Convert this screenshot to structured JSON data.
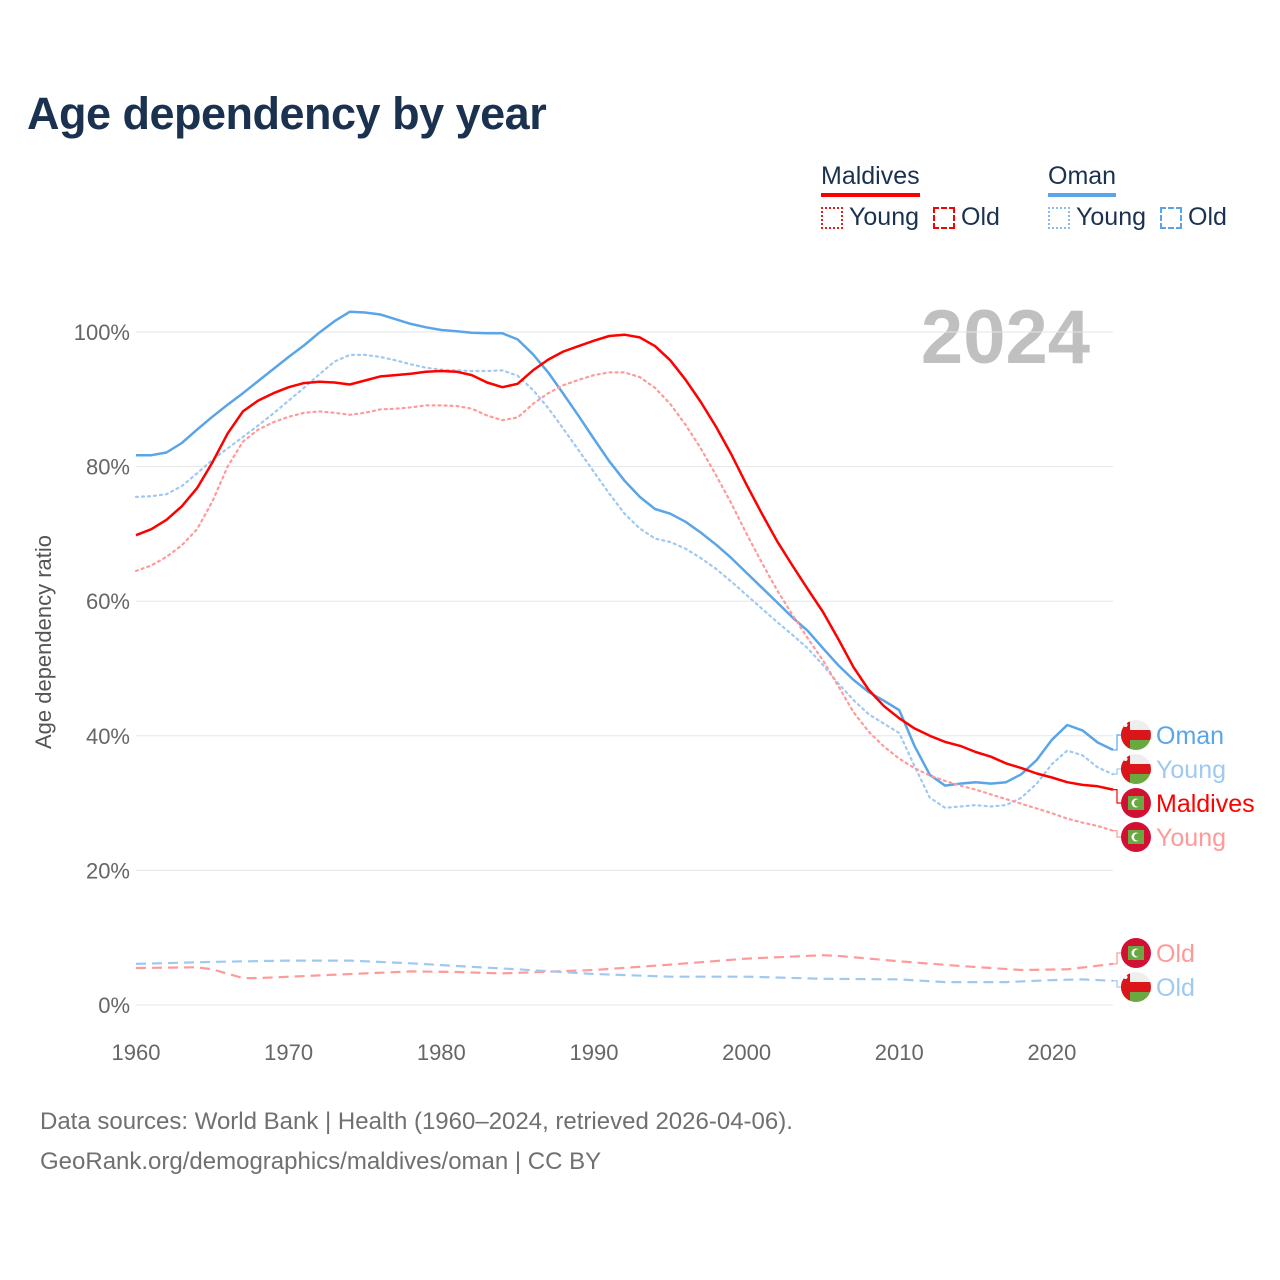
{
  "title": "Age dependency by year",
  "legend": {
    "groups": [
      {
        "name": "Maldives",
        "color": "#ff0000",
        "light": "#ff9a9a",
        "items": [
          "Young",
          "Old"
        ]
      },
      {
        "name": "Oman",
        "color": "#5aa5e8",
        "light": "#9fc9f1",
        "items": [
          "Young",
          "Old"
        ]
      }
    ]
  },
  "year_watermark": "2024",
  "footer": {
    "line1": "Data sources: World Bank | Health (1960–2024, retrieved 2026-04-06).",
    "line2": "GeoRank.org/demographics/maldives/oman | CC BY"
  },
  "chart_data": {
    "type": "line",
    "title": "Age dependency by year",
    "xlabel": "",
    "ylabel": "Age dependency ratio",
    "xlim": [
      1960,
      2024
    ],
    "ylim": [
      0,
      100
    ],
    "xticks": [
      "1960",
      "1970",
      "1980",
      "1990",
      "2000",
      "2010",
      "2020"
    ],
    "yticks": [
      "0%",
      "20%",
      "40%",
      "60%",
      "80%",
      "100%"
    ],
    "grid": true,
    "series": [
      {
        "name": "Oman",
        "country": "Oman",
        "kind": "Total",
        "label": "Oman",
        "style": "solid",
        "color": "#5aa5e8",
        "x_start": 1960,
        "values": [
          81.7,
          81.7,
          82.1,
          83.5,
          85.5,
          87.4,
          89.2,
          90.9,
          92.7,
          94.5,
          96.3,
          98.0,
          99.9,
          101.6,
          103.0,
          102.9,
          102.6,
          101.9,
          101.2,
          100.7,
          100.3,
          100.1,
          99.9,
          99.8,
          99.8,
          98.9,
          96.7,
          94.0,
          90.8,
          87.5,
          84.1,
          80.8,
          77.9,
          75.5,
          73.7,
          73.0,
          71.8,
          70.2,
          68.4,
          66.4,
          64.2,
          62.0,
          59.8,
          57.6,
          55.6,
          53.0,
          50.5,
          48.3,
          46.5,
          45.2,
          43.8,
          38.5,
          34.2,
          32.6,
          32.9,
          33.1,
          32.9,
          33.1,
          34.3,
          36.4,
          39.4,
          41.6,
          40.8,
          39.0,
          37.9
        ]
      },
      {
        "name": "Oman Young",
        "country": "Oman",
        "kind": "Young",
        "label": "Young",
        "style": "dotted",
        "color": "#9fc9f1",
        "x_start": 1960,
        "values": [
          75.5,
          75.6,
          75.9,
          77.1,
          79.0,
          81.0,
          82.7,
          84.4,
          86.1,
          87.9,
          89.8,
          91.7,
          93.7,
          95.6,
          96.6,
          96.6,
          96.3,
          95.8,
          95.2,
          94.7,
          94.4,
          94.3,
          94.2,
          94.2,
          94.3,
          93.5,
          91.4,
          88.7,
          85.6,
          82.4,
          79.2,
          76.0,
          73.0,
          70.8,
          69.3,
          68.8,
          67.8,
          66.4,
          64.8,
          62.9,
          60.9,
          58.9,
          56.9,
          55.0,
          53.0,
          50.5,
          47.8,
          45.3,
          43.2,
          41.8,
          40.4,
          35.5,
          30.8,
          29.3,
          29.5,
          29.7,
          29.5,
          29.7,
          30.8,
          32.9,
          35.8,
          37.8,
          37.1,
          35.3,
          34.3
        ]
      },
      {
        "name": "Maldives",
        "country": "Maldives",
        "kind": "Total",
        "label": "Maldives",
        "style": "solid",
        "color": "#ff0000",
        "x_start": 1960,
        "values": [
          69.8,
          70.7,
          72.1,
          74.1,
          76.8,
          80.6,
          84.9,
          88.2,
          89.8,
          90.9,
          91.8,
          92.4,
          92.6,
          92.5,
          92.2,
          92.8,
          93.4,
          93.6,
          93.8,
          94.1,
          94.2,
          94.1,
          93.6,
          92.5,
          91.8,
          92.3,
          94.3,
          95.9,
          97.1,
          97.9,
          98.7,
          99.4,
          99.6,
          99.2,
          97.9,
          95.8,
          92.9,
          89.6,
          85.9,
          81.8,
          77.3,
          73.0,
          68.9,
          65.3,
          61.8,
          58.4,
          54.4,
          50.2,
          46.8,
          44.4,
          42.6,
          41.1,
          40.0,
          39.1,
          38.5,
          37.6,
          36.9,
          35.9,
          35.2,
          34.4,
          33.8,
          33.1,
          32.7,
          32.5,
          32.0
        ]
      },
      {
        "name": "Maldives Young",
        "country": "Maldives",
        "kind": "Young",
        "label": "Young",
        "style": "dotted",
        "color": "#ff9a9a",
        "x_start": 1960,
        "values": [
          64.5,
          65.3,
          66.6,
          68.3,
          70.7,
          74.8,
          80.0,
          83.7,
          85.5,
          86.6,
          87.4,
          88.0,
          88.2,
          88.0,
          87.7,
          88.0,
          88.5,
          88.6,
          88.8,
          89.1,
          89.1,
          89.0,
          88.6,
          87.6,
          86.9,
          87.3,
          89.3,
          90.9,
          92.1,
          92.9,
          93.6,
          94.0,
          94.0,
          93.3,
          91.7,
          89.3,
          86.2,
          82.7,
          78.7,
          74.5,
          70.0,
          65.7,
          61.6,
          58.0,
          54.5,
          51.2,
          47.4,
          43.5,
          40.6,
          38.4,
          36.6,
          35.2,
          34.1,
          33.3,
          32.6,
          32.0,
          31.3,
          30.6,
          29.9,
          29.2,
          28.5,
          27.7,
          27.1,
          26.6,
          25.9
        ]
      },
      {
        "name": "Maldives Old",
        "country": "Maldives",
        "kind": "Old",
        "label": "Old",
        "style": "dashed",
        "color": "#ff9a9a",
        "x": [
          1960,
          1964,
          1965,
          1967,
          1968,
          1972,
          1978,
          1981,
          1984,
          1990,
          1995,
          2000,
          2005,
          2006,
          2010,
          2014,
          2018,
          2021,
          2024
        ],
        "values": [
          5.5,
          5.6,
          5.3,
          4.0,
          4.0,
          4.4,
          5.0,
          4.9,
          4.7,
          5.2,
          6.0,
          6.9,
          7.4,
          7.3,
          6.5,
          5.8,
          5.2,
          5.3,
          6.1
        ]
      },
      {
        "name": "Oman Old",
        "country": "Oman",
        "kind": "Old",
        "label": "Old",
        "style": "dashed",
        "color": "#9fc9f1",
        "x": [
          1960,
          1965,
          1970,
          1974,
          1978,
          1981,
          1985,
          1990,
          1995,
          2000,
          2005,
          2010,
          2013,
          2017,
          2020,
          2022,
          2024
        ],
        "values": [
          6.1,
          6.4,
          6.6,
          6.6,
          6.2,
          5.8,
          5.3,
          4.6,
          4.2,
          4.2,
          3.9,
          3.8,
          3.4,
          3.4,
          3.7,
          3.8,
          3.6
        ]
      }
    ]
  }
}
